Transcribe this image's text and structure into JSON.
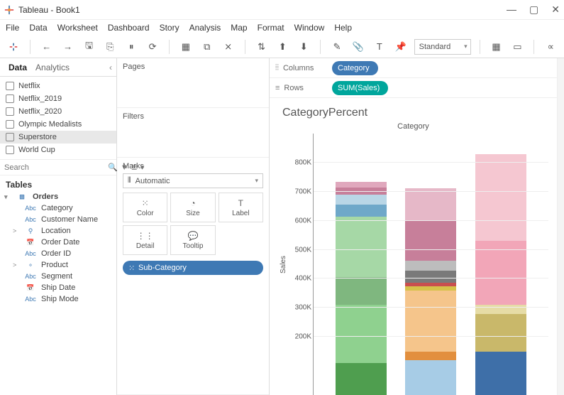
{
  "window": {
    "title": "Tableau - Book1"
  },
  "menubar": [
    "File",
    "Data",
    "Worksheet",
    "Dashboard",
    "Story",
    "Analysis",
    "Map",
    "Format",
    "Window",
    "Help"
  ],
  "toolbar": {
    "fit_mode": "Standard"
  },
  "side": {
    "tabs": {
      "data": "Data",
      "analytics": "Analytics"
    },
    "datasources": [
      {
        "label": "Netflix",
        "selected": false
      },
      {
        "label": "Netflix_2019",
        "selected": false
      },
      {
        "label": "Netflix_2020",
        "selected": false
      },
      {
        "label": "Olympic Medalists",
        "selected": false
      },
      {
        "label": "Superstore",
        "selected": true
      },
      {
        "label": "World Cup",
        "selected": false
      }
    ],
    "search_placeholder": "Search",
    "tables_header": "Tables",
    "tree": {
      "root": "Orders",
      "fields": [
        {
          "type": "Abc",
          "label": "Category",
          "exp": ""
        },
        {
          "type": "Abc",
          "label": "Customer Name",
          "exp": ""
        },
        {
          "type": "geo",
          "label": "Location",
          "exp": ">"
        },
        {
          "type": "date",
          "label": "Order Date",
          "exp": ""
        },
        {
          "type": "Abc",
          "label": "Order ID",
          "exp": ""
        },
        {
          "type": "hier",
          "label": "Product",
          "exp": ">"
        },
        {
          "type": "Abc",
          "label": "Segment",
          "exp": ""
        },
        {
          "type": "date",
          "label": "Ship Date",
          "exp": ""
        },
        {
          "type": "Abc",
          "label": "Ship Mode",
          "exp": ""
        }
      ]
    }
  },
  "shelves": {
    "pages": "Pages",
    "filters": "Filters",
    "marks": "Marks",
    "mark_type": "Automatic",
    "cards": {
      "color": "Color",
      "size": "Size",
      "label": "Label",
      "detail": "Detail",
      "tooltip": "Tooltip"
    },
    "color_pill": "Sub-Category"
  },
  "colrow": {
    "columns_label": "Columns",
    "rows_label": "Rows",
    "columns_pill": "Category",
    "rows_pill": "SUM(Sales)"
  },
  "chart": {
    "title": "CategoryPercent",
    "axis_title": "Category",
    "y_label": "Sales",
    "y_max": 900,
    "y_ticks": [
      200,
      300,
      400,
      500,
      600,
      700,
      800
    ],
    "y_tick_labels": [
      "200K",
      "300K",
      "400K",
      "500K",
      "600K",
      "700K",
      "800K"
    ],
    "bars": [
      {
        "segments": [
          {
            "v": 110,
            "c": "#4f9e4f"
          },
          {
            "v": 200,
            "c": "#8fd18f"
          },
          {
            "v": 95,
            "c": "#7fb77f"
          },
          {
            "v": 210,
            "c": "#a6d8a6"
          },
          {
            "v": 40,
            "c": "#6fa8c9"
          },
          {
            "v": 35,
            "c": "#b9d6e6"
          },
          {
            "v": 25,
            "c": "#c77f9a"
          },
          {
            "v": 20,
            "c": "#e0a8bd"
          }
        ]
      },
      {
        "segments": [
          {
            "v": 120,
            "c": "#a7cce6"
          },
          {
            "v": 30,
            "c": "#e28f3e"
          },
          {
            "v": 210,
            "c": "#f5c58b"
          },
          {
            "v": 15,
            "c": "#d6c24a"
          },
          {
            "v": 12,
            "c": "#c94f4f"
          },
          {
            "v": 40,
            "c": "#7a7a7a"
          },
          {
            "v": 35,
            "c": "#bdbdbd"
          },
          {
            "v": 140,
            "c": "#c77f9a"
          },
          {
            "v": 110,
            "c": "#e6b8c8"
          }
        ]
      },
      {
        "segments": [
          {
            "v": 150,
            "c": "#3e6fa8"
          },
          {
            "v": 130,
            "c": "#c9b86a"
          },
          {
            "v": 30,
            "c": "#e6dca6"
          },
          {
            "v": 220,
            "c": "#f2a6b8"
          },
          {
            "v": 300,
            "c": "#f5c7d1"
          }
        ]
      }
    ],
    "colors": {
      "grid": "#eeeeee",
      "axis": "#999999",
      "bg": "#ffffff"
    }
  }
}
